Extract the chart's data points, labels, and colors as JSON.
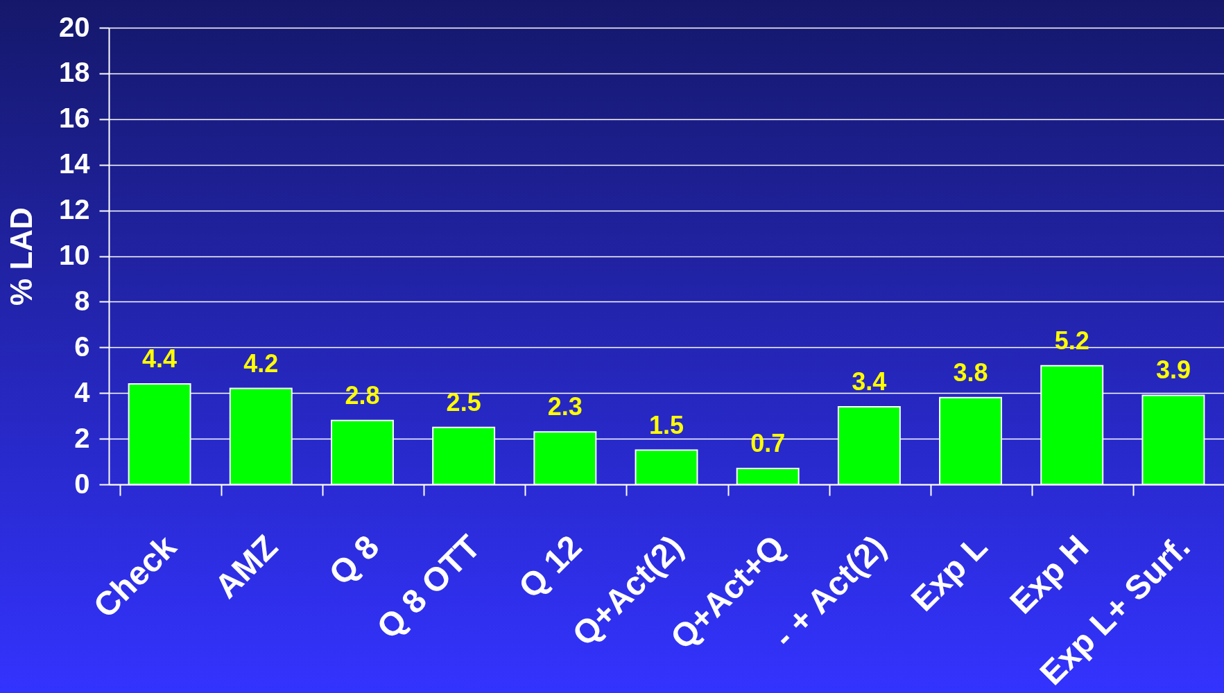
{
  "chart_data": {
    "type": "bar",
    "ylabel": "% LAD",
    "categories": [
      "Check",
      "AMZ",
      "Q 8",
      "Q 8 OTT",
      "Q 12",
      "Q+Act(2)",
      "Q+Act+Q",
      "- + Act(2)",
      "Exp L",
      "Exp H",
      "Exp L+ Surf."
    ],
    "values": [
      4.4,
      4.2,
      2.8,
      2.5,
      2.3,
      1.5,
      0.7,
      3.4,
      3.8,
      5.2,
      3.9
    ],
    "color": "#00ff00",
    "ylim": [
      0,
      20
    ],
    "yticks": [
      0,
      2,
      4,
      6,
      8,
      10,
      12,
      14,
      16,
      18,
      20
    ],
    "grid": "y",
    "data_labels": true
  }
}
